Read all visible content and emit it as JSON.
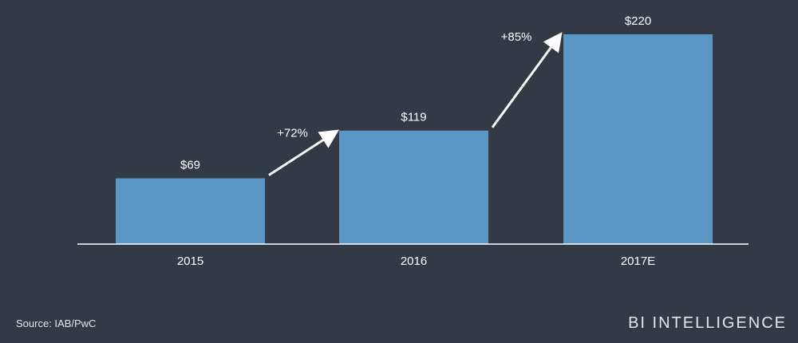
{
  "chart_data": {
    "type": "bar",
    "categories": [
      "2015",
      "2016",
      "2017E"
    ],
    "values": [
      69,
      119,
      220
    ],
    "data_labels": [
      "$69",
      "$119",
      "$220"
    ],
    "annotations": [
      {
        "from": "2015",
        "to": "2016",
        "text": "+72%"
      },
      {
        "from": "2016",
        "to": "2017E",
        "text": "+85%"
      }
    ],
    "title": "",
    "xlabel": "",
    "ylabel": "",
    "ylim": [
      0,
      220
    ],
    "grid": false,
    "bar_color": "#5a97c6",
    "background": "#343a45"
  },
  "footer": {
    "source": "Source: IAB/PwC",
    "brand": "BI INTELLIGENCE"
  }
}
